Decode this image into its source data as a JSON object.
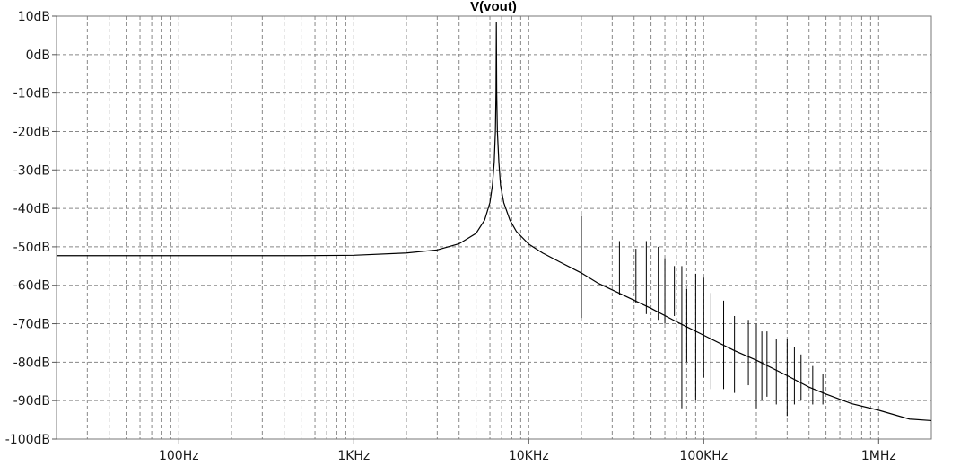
{
  "chart_data": {
    "type": "line",
    "title": "V(vout)",
    "xlabel": "",
    "ylabel": "",
    "x_scale": "log",
    "xlim": [
      20,
      2000000
    ],
    "ylim": [
      -100,
      10
    ],
    "grid": true,
    "legend": "none",
    "x_ticks": [
      {
        "value": 100,
        "label": "100Hz"
      },
      {
        "value": 1000,
        "label": "1KHz"
      },
      {
        "value": 10000,
        "label": "10KHz"
      },
      {
        "value": 100000,
        "label": "100KHz"
      },
      {
        "value": 1000000,
        "label": "1MHz"
      }
    ],
    "y_ticks": [
      {
        "value": 10,
        "label": "10dB"
      },
      {
        "value": 0,
        "label": "0dB"
      },
      {
        "value": -10,
        "label": "-10dB"
      },
      {
        "value": -20,
        "label": "-20dB"
      },
      {
        "value": -30,
        "label": "-30dB"
      },
      {
        "value": -40,
        "label": "-40dB"
      },
      {
        "value": -50,
        "label": "-50dB"
      },
      {
        "value": -60,
        "label": "-60dB"
      },
      {
        "value": -70,
        "label": "-70dB"
      },
      {
        "value": -80,
        "label": "-80dB"
      },
      {
        "value": -90,
        "label": "-90dB"
      },
      {
        "value": -100,
        "label": "-100dB"
      }
    ],
    "series": [
      {
        "color": "#000000",
        "points": [
          [
            20,
            -52.3
          ],
          [
            100,
            -52.3
          ],
          [
            500,
            -52.3
          ],
          [
            1000,
            -52.2
          ],
          [
            2000,
            -51.6
          ],
          [
            3000,
            -50.8
          ],
          [
            4000,
            -49.2
          ],
          [
            5000,
            -46.5
          ],
          [
            5600,
            -43.0
          ],
          [
            6000,
            -38.5
          ],
          [
            6200,
            -34.0
          ],
          [
            6350,
            -28.0
          ],
          [
            6450,
            -20.0
          ],
          [
            6500,
            -10.0
          ],
          [
            6530,
            8.5
          ],
          [
            6560,
            -10.0
          ],
          [
            6620,
            -20.0
          ],
          [
            6750,
            -28.0
          ],
          [
            6900,
            -34.0
          ],
          [
            7200,
            -38.5
          ],
          [
            7800,
            -43.0
          ],
          [
            8500,
            -46.0
          ],
          [
            10000,
            -49.3
          ],
          [
            12000,
            -51.6
          ],
          [
            15000,
            -53.9
          ],
          [
            20000,
            -56.8
          ],
          [
            25000,
            -59.5
          ],
          [
            33000,
            -62.1
          ],
          [
            50000,
            -66.0
          ],
          [
            70000,
            -69.5
          ],
          [
            100000,
            -73.0
          ],
          [
            150000,
            -77.0
          ],
          [
            200000,
            -79.5
          ],
          [
            300000,
            -83.5
          ],
          [
            400000,
            -86.5
          ],
          [
            500000,
            -88.3
          ],
          [
            700000,
            -90.8
          ],
          [
            1000000,
            -92.5
          ],
          [
            1500000,
            -94.8
          ],
          [
            2000000,
            -95.2
          ]
        ],
        "spikes": [
          {
            "x": 20000,
            "top": -42,
            "bottom": -68.5
          },
          {
            "x": 33000,
            "top": -48.5,
            "bottom": -62.5
          },
          {
            "x": 41000,
            "top": -50.5,
            "bottom": -64.5
          },
          {
            "x": 47000,
            "top": -48.5,
            "bottom": -67.5
          },
          {
            "x": 55000,
            "top": -50,
            "bottom": -69
          },
          {
            "x": 60000,
            "top": -53,
            "bottom": -70
          },
          {
            "x": 68000,
            "top": -55,
            "bottom": -68
          },
          {
            "x": 75000,
            "top": -55,
            "bottom": -92
          },
          {
            "x": 80000,
            "top": -61,
            "bottom": -80
          },
          {
            "x": 90000,
            "top": -57,
            "bottom": -90
          },
          {
            "x": 100000,
            "top": -58,
            "bottom": -84
          },
          {
            "x": 110000,
            "top": -62,
            "bottom": -87
          },
          {
            "x": 130000,
            "top": -64,
            "bottom": -87
          },
          {
            "x": 150000,
            "top": -68,
            "bottom": -88
          },
          {
            "x": 180000,
            "top": -69,
            "bottom": -86
          },
          {
            "x": 200000,
            "top": -70,
            "bottom": -92
          },
          {
            "x": 215000,
            "top": -72,
            "bottom": -90
          },
          {
            "x": 230000,
            "top": -72,
            "bottom": -89
          },
          {
            "x": 260000,
            "top": -74,
            "bottom": -91
          },
          {
            "x": 300000,
            "top": -74,
            "bottom": -94
          },
          {
            "x": 330000,
            "top": -76,
            "bottom": -91
          },
          {
            "x": 360000,
            "top": -78,
            "bottom": -90
          },
          {
            "x": 420000,
            "top": -81,
            "bottom": -91
          },
          {
            "x": 480000,
            "top": -83,
            "bottom": -91
          }
        ]
      }
    ]
  }
}
